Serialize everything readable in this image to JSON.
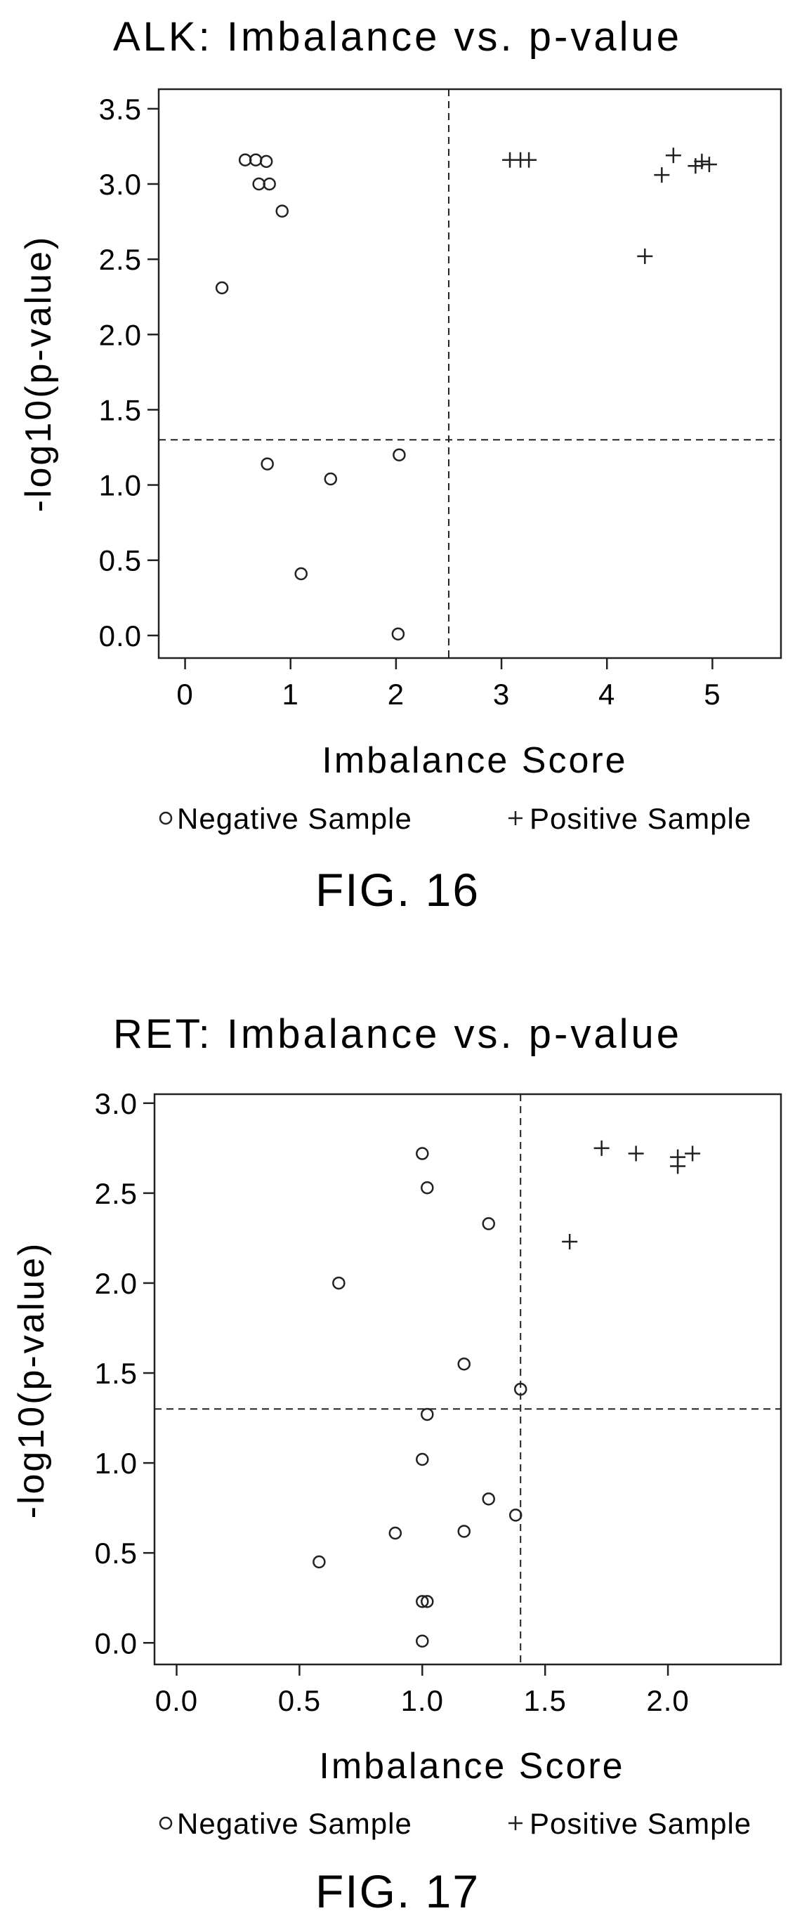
{
  "chart_data": [
    {
      "type": "scatter",
      "title": "ALK: Imbalance vs. p-value",
      "xlabel": "Imbalance Score",
      "ylabel": "-log10(p-value)",
      "xlim": [
        -0.25,
        5.65
      ],
      "ylim": [
        -0.15,
        3.63
      ],
      "xticks": [
        0,
        1,
        2,
        3,
        4,
        5
      ],
      "xtick_labels": [
        "0",
        "1",
        "2",
        "3",
        "4",
        "5"
      ],
      "yticks": [
        0.0,
        0.5,
        1.0,
        1.5,
        2.0,
        2.5,
        3.0,
        3.5
      ],
      "ytick_labels": [
        "0.0",
        "0.5",
        "1.0",
        "1.5",
        "2.0",
        "2.5",
        "3.0",
        "3.5"
      ],
      "reference_lines": {
        "x": 2.5,
        "y": 1.3
      },
      "grid": false,
      "legend_position": "bottom",
      "figure_label": "FIG. 16",
      "series": [
        {
          "name": "Negative Sample",
          "marker": "circle",
          "points": [
            [
              0.35,
              2.31
            ],
            [
              0.57,
              3.16
            ],
            [
              0.67,
              3.16
            ],
            [
              0.77,
              3.15
            ],
            [
              0.7,
              3.0
            ],
            [
              0.8,
              3.0
            ],
            [
              0.92,
              2.82
            ],
            [
              0.78,
              1.14
            ],
            [
              1.38,
              1.04
            ],
            [
              2.03,
              1.2
            ],
            [
              1.1,
              0.41
            ],
            [
              2.02,
              0.01
            ]
          ]
        },
        {
          "name": "Positive Sample",
          "marker": "plus",
          "points": [
            [
              3.08,
              3.16
            ],
            [
              3.18,
              3.16
            ],
            [
              3.26,
              3.16
            ],
            [
              4.36,
              2.52
            ],
            [
              4.52,
              3.06
            ],
            [
              4.63,
              3.19
            ],
            [
              4.84,
              3.12
            ],
            [
              4.9,
              3.15
            ],
            [
              4.97,
              3.13
            ]
          ]
        }
      ]
    },
    {
      "type": "scatter",
      "title": "RET: Imbalance vs. p-value",
      "xlabel": "Imbalance Score",
      "ylabel": "-log10(p-value)",
      "xlim": [
        -0.09,
        2.46
      ],
      "ylim": [
        -0.12,
        3.05
      ],
      "xticks": [
        0.0,
        0.5,
        1.0,
        1.5,
        2.0
      ],
      "xtick_labels": [
        "0.0",
        "0.5",
        "1.0",
        "1.5",
        "2.0"
      ],
      "yticks": [
        0.0,
        0.5,
        1.0,
        1.5,
        2.0,
        2.5,
        3.0
      ],
      "ytick_labels": [
        "0.0",
        "0.5",
        "1.0",
        "1.5",
        "2.0",
        "2.5",
        "3.0"
      ],
      "reference_lines": {
        "x": 1.4,
        "y": 1.3
      },
      "grid": false,
      "legend_position": "bottom",
      "figure_label": "FIG. 17",
      "series": [
        {
          "name": "Negative Sample",
          "marker": "circle",
          "points": [
            [
              1.0,
              2.72
            ],
            [
              1.02,
              2.53
            ],
            [
              0.66,
              2.0
            ],
            [
              1.27,
              2.33
            ],
            [
              1.17,
              1.55
            ],
            [
              1.4,
              1.41
            ],
            [
              1.02,
              1.27
            ],
            [
              1.0,
              1.02
            ],
            [
              0.89,
              0.61
            ],
            [
              1.17,
              0.62
            ],
            [
              1.27,
              0.8
            ],
            [
              1.38,
              0.71
            ],
            [
              0.58,
              0.45
            ],
            [
              1.0,
              0.23
            ],
            [
              1.02,
              0.23
            ],
            [
              1.0,
              0.01
            ]
          ]
        },
        {
          "name": "Positive Sample",
          "marker": "plus",
          "points": [
            [
              1.6,
              2.23
            ],
            [
              1.73,
              2.75
            ],
            [
              1.87,
              2.72
            ],
            [
              2.04,
              2.65
            ],
            [
              2.04,
              2.7
            ],
            [
              2.1,
              2.72
            ]
          ]
        }
      ]
    }
  ]
}
